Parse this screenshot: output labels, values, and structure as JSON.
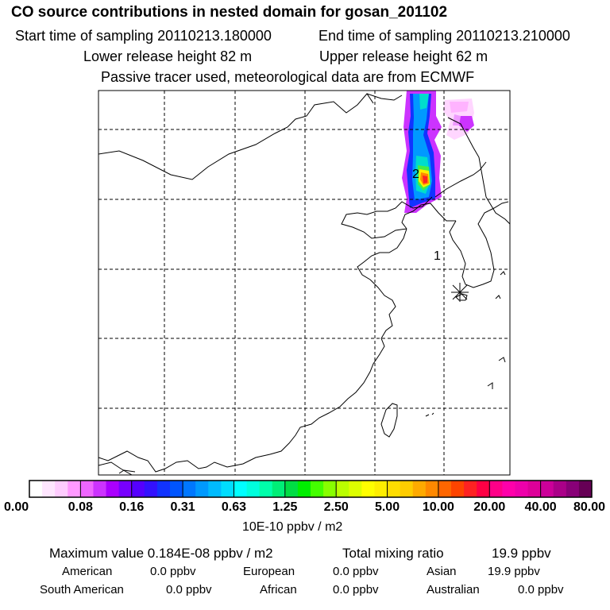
{
  "header": {
    "title": "CO  source contributions in nested domain for gosan_201102",
    "start_label": "Start time of sampling 20110213.180000",
    "end_label": "End time of sampling 20110213.210000",
    "lower_label": "Lower release height   82 m",
    "upper_label": "Upper release height   62 m",
    "tracer_note": "Passive tracer used, meteorological data are from ECMWF"
  },
  "map": {
    "markers": [
      {
        "id": "marker-1",
        "label": "1"
      },
      {
        "id": "marker-2",
        "label": "2"
      }
    ]
  },
  "colorbar": {
    "tick_labels": [
      "0.00",
      "0.08",
      "0.16",
      "0.31",
      "0.63",
      "1.25",
      "2.50",
      "5.00",
      "10.00",
      "20.00",
      "40.00",
      "80.00"
    ],
    "units": "10E-10 ppbv / m2",
    "colors": [
      "#ffffff",
      "#ffe6ff",
      "#ffccff",
      "#ff99ff",
      "#ee66ff",
      "#cc33ff",
      "#aa00ff",
      "#7700ff",
      "#5500ff",
      "#3311ff",
      "#1133ff",
      "#0055ff",
      "#0077ff",
      "#0099ff",
      "#00bbff",
      "#00ddff",
      "#00ffff",
      "#00ffdd",
      "#00ffaa",
      "#00ee77",
      "#00dd44",
      "#00ee00",
      "#44ff00",
      "#88ff00",
      "#bbff00",
      "#ddff00",
      "#ffff00",
      "#ffee00",
      "#ffdd00",
      "#ffcc00",
      "#ffaa00",
      "#ff8800",
      "#ff6600",
      "#ff4400",
      "#ff2222",
      "#ff0044",
      "#ff0088",
      "#ff00aa",
      "#ee00aa",
      "#dd0099",
      "#cc0099",
      "#aa0088",
      "#880077",
      "#660055"
    ]
  },
  "stats": {
    "max_label": "Maximum value  0.184E-08 ppbv / m2",
    "total_label": "Total mixing ratio",
    "total_value": "19.9 ppbv",
    "american_label": "American",
    "american_value": "0.0 ppbv",
    "european_label": "European",
    "european_value": "0.0 ppbv",
    "asian_label": "Asian",
    "asian_value": "19.9 ppbv",
    "south_american_label": "South American",
    "south_american_value": "0.0 ppbv",
    "african_label": "African",
    "african_value": "0.0 ppbv",
    "australian_label": "Australian",
    "australian_value": "0.0 ppbv"
  }
}
